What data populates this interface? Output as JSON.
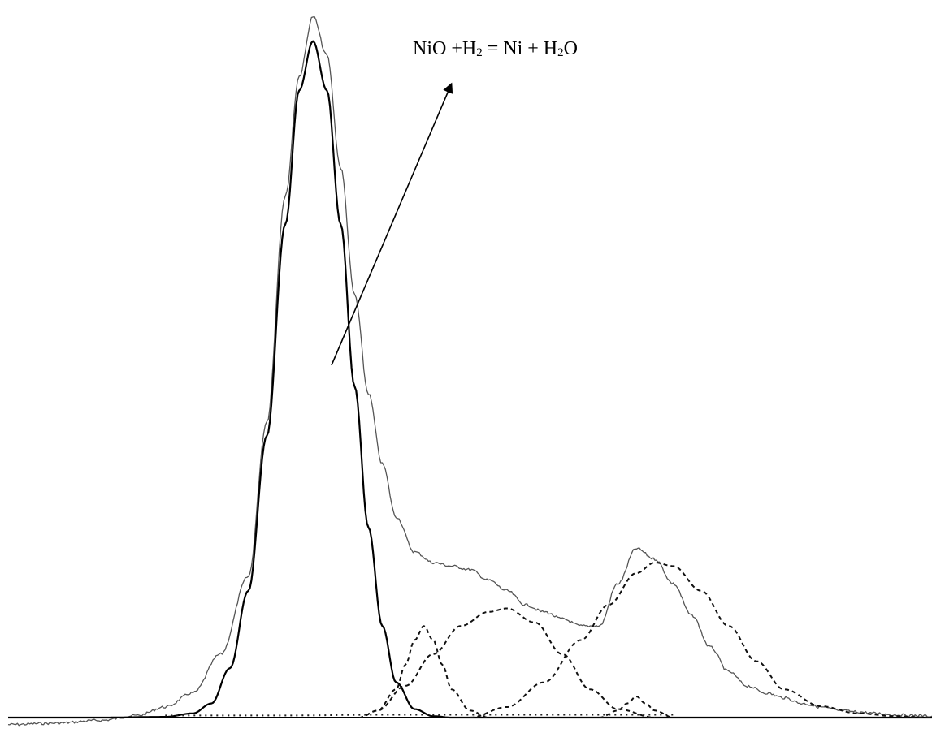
{
  "chart_data": {
    "type": "line",
    "title": "",
    "xlabel": "",
    "ylabel": "",
    "axes_visible": false,
    "grid": false,
    "legend": "none",
    "xlim": [
      0,
      100
    ],
    "ylim": [
      0,
      100
    ],
    "annotation": {
      "text_parts": [
        "NiO +H",
        "2",
        " = Ni + H",
        "2",
        "O"
      ],
      "arrow": {
        "from": [
          35,
          50
        ],
        "to": [
          48,
          90
        ]
      }
    },
    "series": [
      {
        "style": "gray-noisy",
        "x": [
          0,
          5,
          10,
          14,
          17,
          20,
          23,
          26,
          28,
          30,
          31.5,
          33,
          34.5,
          36,
          37.5,
          39,
          40.5,
          42,
          44,
          46,
          48,
          50,
          52,
          54,
          56,
          58,
          60,
          62,
          64,
          66,
          68,
          70,
          72,
          74,
          76,
          78,
          80,
          82,
          84,
          86,
          88,
          90,
          92,
          94,
          96,
          98,
          100
        ],
        "values": [
          -1.0,
          -0.8,
          -0.4,
          0.3,
          1.5,
          3.5,
          9.0,
          20.0,
          42.0,
          74.0,
          91.0,
          99.5,
          94.0,
          78.0,
          60.0,
          46.0,
          36.0,
          28.5,
          23.5,
          22.0,
          21.5,
          21.0,
          19.5,
          18.0,
          16.0,
          15.0,
          14.0,
          13.0,
          13.0,
          19.0,
          24.0,
          22.5,
          19.0,
          14.5,
          10.0,
          6.5,
          4.5,
          3.5,
          2.8,
          2.0,
          1.5,
          1.0,
          0.8,
          0.6,
          0.4,
          0.3,
          0.2
        ]
      },
      {
        "style": "black-solid",
        "x": [
          0,
          10,
          17,
          20,
          22,
          24,
          26,
          28,
          30,
          31.5,
          33,
          34.5,
          36,
          37.5,
          39,
          40.5,
          42,
          44,
          46,
          48,
          100
        ],
        "values": [
          0,
          0,
          0.1,
          0.6,
          2.0,
          7.0,
          18.0,
          40.0,
          70.0,
          89.0,
          96.0,
          89.0,
          70.0,
          47.0,
          27.0,
          13.0,
          5.0,
          1.2,
          0.2,
          0,
          0
        ]
      },
      {
        "style": "dashed",
        "x": [
          38,
          40,
          42,
          43,
          44,
          45,
          46,
          47,
          48,
          50,
          52
        ],
        "values": [
          0,
          1.0,
          4.0,
          7.5,
          11.0,
          13.0,
          11.0,
          7.5,
          4.0,
          1.0,
          0
        ]
      },
      {
        "style": "dashed",
        "x": [
          38,
          40,
          43,
          46,
          49,
          52,
          54,
          57,
          60,
          63,
          66,
          70
        ],
        "values": [
          0,
          1.0,
          4.5,
          9.0,
          13.0,
          15.0,
          15.5,
          13.5,
          9.0,
          4.0,
          1.2,
          0
        ]
      },
      {
        "style": "dashed",
        "x": [
          50,
          54,
          58,
          62,
          65,
          68,
          70,
          72,
          75,
          78,
          81,
          84,
          88,
          92,
          96,
          100
        ],
        "values": [
          0,
          1.5,
          5.0,
          11.0,
          16.0,
          20.5,
          22.0,
          21.5,
          18.0,
          13.0,
          8.0,
          4.0,
          1.6,
          0.6,
          0.2,
          0
        ]
      },
      {
        "style": "dashed",
        "x": [
          64,
          66,
          67,
          68,
          69,
          70,
          72
        ],
        "values": [
          0,
          1.0,
          2.0,
          3.0,
          2.0,
          1.0,
          0
        ]
      },
      {
        "style": "dotted-baseline",
        "x": [
          17,
          30,
          40,
          50,
          60,
          70,
          72
        ],
        "values": [
          0.3,
          0.3,
          0.4,
          0.4,
          0.4,
          0.4,
          0.4
        ]
      }
    ]
  }
}
